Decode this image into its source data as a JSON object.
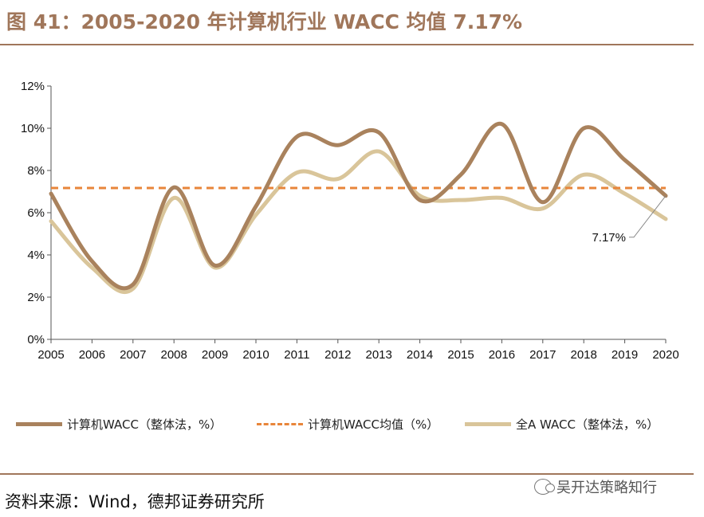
{
  "title": "图 41：2005-2020 年计算机行业 WACC 均值 7.17%",
  "source": "资料来源：Wind，德邦证券研究所",
  "watermark": "吴开达策略知行",
  "watermark_icon": "wechat-icon",
  "chart_data": {
    "type": "line",
    "x": [
      2005,
      2006,
      2007,
      2008,
      2009,
      2010,
      2011,
      2012,
      2013,
      2014,
      2015,
      2016,
      2017,
      2018,
      2019,
      2020
    ],
    "ylim": [
      0,
      12
    ],
    "yticks": [
      "0%",
      "2%",
      "4%",
      "6%",
      "8%",
      "10%",
      "12%"
    ],
    "series": [
      {
        "name": "计算机WACC（整体法，%）",
        "color": "#a9825d",
        "style": "solid",
        "values": [
          6.9,
          3.7,
          2.6,
          7.2,
          3.5,
          6.3,
          9.6,
          9.2,
          9.8,
          6.6,
          7.8,
          10.2,
          6.5,
          10.0,
          8.5,
          6.8
        ]
      },
      {
        "name": "计算机WACC均值（%）",
        "color": "#e8853a",
        "style": "dashed",
        "values": [
          7.17,
          7.17,
          7.17,
          7.17,
          7.17,
          7.17,
          7.17,
          7.17,
          7.17,
          7.17,
          7.17,
          7.17,
          7.17,
          7.17,
          7.17,
          7.17
        ]
      },
      {
        "name": "全A WACC（整体法，%）",
        "color": "#d9c59a",
        "style": "solid",
        "values": [
          5.6,
          3.4,
          2.4,
          6.7,
          3.4,
          5.9,
          7.9,
          7.6,
          8.9,
          6.8,
          6.6,
          6.7,
          6.2,
          7.8,
          6.9,
          5.7
        ]
      }
    ],
    "annotation": {
      "text": "7.17%",
      "x": 2020,
      "y": 7.17
    }
  }
}
